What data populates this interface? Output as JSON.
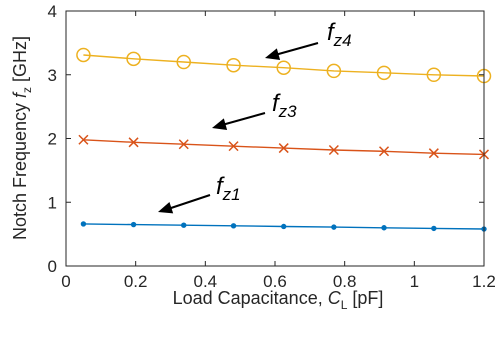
{
  "chart_data": {
    "type": "line",
    "xlabel": {
      "main": "Load Capacitance, ",
      "italic": "C",
      "sub": "L",
      "unit": " [pF]"
    },
    "ylabel": {
      "main": "Notch Frequency ",
      "italic": "f",
      "sub": "z",
      "unit": " [GHz]"
    },
    "xlim": [
      0,
      1.2
    ],
    "ylim": [
      0,
      4
    ],
    "xticks": [
      0,
      0.2,
      0.4,
      0.6,
      0.8,
      1,
      1.2
    ],
    "xtick_labels": [
      "0",
      "0.2",
      "0.4",
      "0.6",
      "0.8",
      "1",
      "1.2"
    ],
    "yticks": [
      0,
      1,
      2,
      3,
      4
    ],
    "ytick_labels": [
      "0",
      "1",
      "2",
      "3",
      "4"
    ],
    "grid": false,
    "x": [
      0.05,
      0.194,
      0.338,
      0.481,
      0.625,
      0.769,
      0.913,
      1.056,
      1.2
    ],
    "series": [
      {
        "key": "fz1",
        "label_italic": "f",
        "label_sub": "z1",
        "marker": "dot",
        "color": "#0072BD",
        "values": [
          0.66,
          0.65,
          0.64,
          0.63,
          0.62,
          0.61,
          0.6,
          0.59,
          0.58
        ]
      },
      {
        "key": "fz3",
        "label_italic": "f",
        "label_sub": "z3",
        "marker": "x",
        "color": "#D95319",
        "values": [
          1.98,
          1.94,
          1.91,
          1.88,
          1.85,
          1.82,
          1.8,
          1.77,
          1.75
        ]
      },
      {
        "key": "fz4",
        "label_italic": "f",
        "label_sub": "z4",
        "marker": "circle",
        "color": "#EDB120",
        "values": [
          3.31,
          3.25,
          3.2,
          3.15,
          3.11,
          3.06,
          3.03,
          3.0,
          2.98
        ]
      }
    ]
  }
}
